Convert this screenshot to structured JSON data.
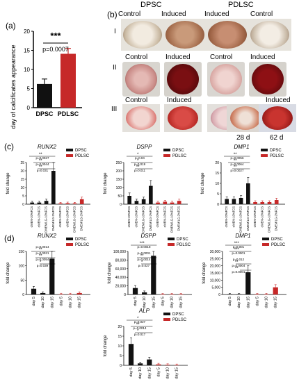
{
  "panel_a": {
    "label": "(a)",
    "chart_data": {
      "type": "bar",
      "categories": [
        "DPSC",
        "PDLSC"
      ],
      "values": [
        6.2,
        14.1
      ],
      "errors": [
        1.3,
        1.4
      ],
      "ylabel": "day of calcificates appearance",
      "yticks": [
        "0",
        "5",
        "10",
        "15",
        "20"
      ],
      "ylim": [
        0,
        20
      ],
      "significance": "***",
      "pvalue": "p=0.0007",
      "colors": [
        "#111111",
        "#c62828"
      ]
    }
  },
  "panel_b": {
    "label": "(b)",
    "group_headers": [
      "DPSC",
      "PDLSC"
    ],
    "column_labels": [
      "Control",
      "Induced",
      "Induced",
      "Control"
    ],
    "row_labels": [
      "I",
      "II",
      "III"
    ],
    "row2_labels": [
      "Control",
      "Induced",
      "Control",
      "Induced"
    ],
    "row3_labels": [
      "Control",
      "Induced",
      "Induced"
    ],
    "day_labels": [
      "28 d",
      "62 d"
    ]
  },
  "panel_c": {
    "label": "(c)",
    "legend": [
      "DPSC",
      "PDLSC"
    ],
    "ylabel": "fold change",
    "xticks": [
      "αMEM-20%FCS",
      "αMEM-10%FCS",
      "DMEM/LG-10%FCS",
      "DMEM/LG-2%FCS"
    ],
    "charts": [
      {
        "gene": "RUNX2",
        "ylim": [
          0,
          25
        ],
        "yticks": [
          "0",
          "5",
          "10",
          "15",
          "20",
          "25"
        ],
        "dpsc": [
          1,
          1,
          2,
          20
        ],
        "pdlsc": [
          0.5,
          0.6,
          0.5,
          3
        ],
        "annotations": [
          "**",
          "p=0.0027",
          "**",
          "p=0.0044",
          "**",
          "p=0.031"
        ]
      },
      {
        "gene": "DSPP",
        "ylim": [
          0,
          250
        ],
        "yticks": [
          "0",
          "50",
          "100",
          "150",
          "200",
          "250"
        ],
        "dpsc": [
          50,
          20,
          30,
          110
        ],
        "pdlsc": [
          10,
          15,
          10,
          20
        ],
        "annotations": [
          "*",
          "p=0.04",
          "*",
          "p=0.019",
          "**",
          "p=0.011"
        ]
      },
      {
        "gene": "DMP1",
        "ylim": [
          0,
          20
        ],
        "yticks": [
          "0",
          "5",
          "10",
          "15",
          "20"
        ],
        "dpsc": [
          2.5,
          2.5,
          3,
          10
        ],
        "pdlsc": [
          1,
          1,
          1,
          2
        ],
        "annotations": [
          "**",
          "p=0.0056",
          "**",
          "p=0.0064",
          "**",
          "p=0.0027"
        ]
      }
    ]
  },
  "panel_d": {
    "label": "(d)",
    "legend": [
      "DPSC",
      "PDLSC"
    ],
    "ylabel": "fold change",
    "xticks": [
      "day 5",
      "day 10",
      "day 15"
    ],
    "charts": [
      {
        "gene": "RUNX2",
        "ylim": [
          0,
          150
        ],
        "yticks": [
          "0",
          "50",
          "100",
          "150"
        ],
        "dpsc": [
          20,
          5,
          125
        ],
        "pdlsc": [
          1,
          1,
          5
        ],
        "annotations": [
          "p=0.0014",
          "**",
          "p=0.0021",
          "**",
          "p=0.0054",
          "*",
          "p=0.039"
        ]
      },
      {
        "gene": "DSPP",
        "ylim": [
          0,
          100000
        ],
        "yticks": [
          "0",
          "20,000",
          "40,000",
          "60,000",
          "80,000",
          "100,000"
        ],
        "dpsc": [
          15000,
          5000,
          90000
        ],
        "pdlsc": [
          200,
          300,
          300
        ],
        "annotations": [
          "***",
          "p=0.0018",
          "p=0.0001",
          "**",
          "p=0.0014",
          "*",
          "p=0.027"
        ]
      },
      {
        "gene": "DMP1",
        "ylim": [
          0,
          30000
        ],
        "yticks": [
          "0",
          "5,000",
          "10,000",
          "15,000",
          "20,000",
          "25,000",
          "30,000"
        ],
        "dpsc": [
          100,
          100,
          15500
        ],
        "pdlsc": [
          100,
          100,
          5000
        ],
        "annotations": [
          "***",
          "p=0.001",
          "***",
          "p=0.0001",
          "p=0.012",
          "**",
          "p=0.0004",
          "**",
          "p=0.0001"
        ]
      },
      {
        "gene": "ALP",
        "ylim": [
          0,
          20
        ],
        "yticks": [
          "0",
          "5",
          "10",
          "15",
          "20"
        ],
        "dpsc": [
          11,
          1,
          3
        ],
        "pdlsc": [
          0.5,
          0.3,
          0.2
        ],
        "annotations": [
          "*",
          "p=0.027",
          "**",
          "p=0.0014",
          "*",
          "p=0.017"
        ]
      }
    ]
  },
  "colors": {
    "dpsc": "#111111",
    "pdlsc": "#c62828"
  }
}
